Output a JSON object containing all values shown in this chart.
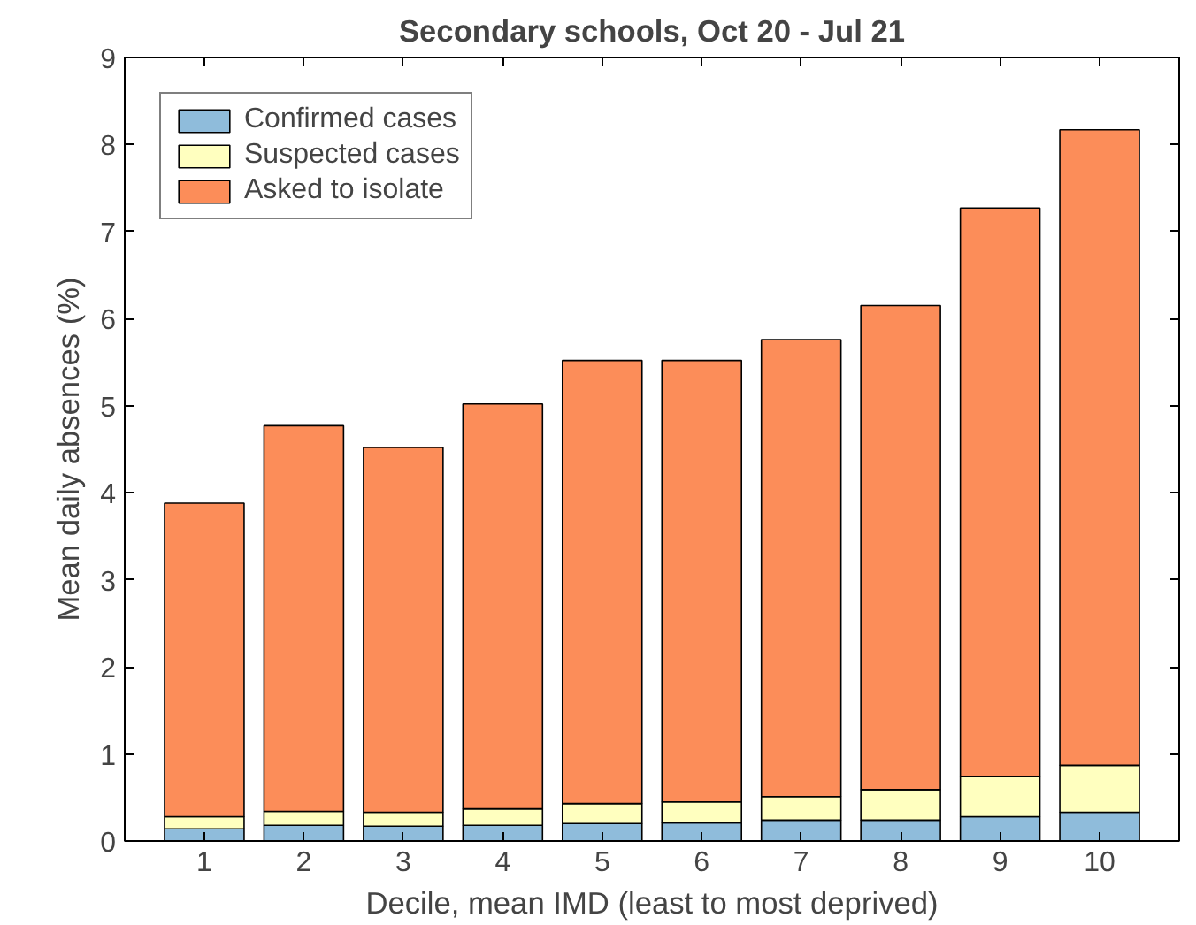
{
  "chart_data": {
    "type": "bar",
    "stacked": true,
    "title": "Secondary schools, Oct 20 - Jul 21",
    "xlabel": "Decile, mean IMD (least to most deprived)",
    "ylabel": "Mean daily absences (%)",
    "categories": [
      "1",
      "2",
      "3",
      "4",
      "5",
      "6",
      "7",
      "8",
      "9",
      "10"
    ],
    "series": [
      {
        "name": "Confirmed cases",
        "color": "#8fbcdb",
        "values": [
          0.14,
          0.18,
          0.17,
          0.18,
          0.2,
          0.21,
          0.24,
          0.24,
          0.28,
          0.33
        ]
      },
      {
        "name": "Suspected cases",
        "color": "#ffffbf",
        "values": [
          0.14,
          0.16,
          0.16,
          0.19,
          0.23,
          0.24,
          0.27,
          0.35,
          0.46,
          0.54
        ]
      },
      {
        "name": "Asked to isolate",
        "color": "#fc8d59",
        "values": [
          3.6,
          4.43,
          4.19,
          4.65,
          5.09,
          5.07,
          5.25,
          5.56,
          6.53,
          7.3
        ]
      }
    ],
    "ylim": [
      0,
      9
    ],
    "yticks": [
      0,
      1,
      2,
      3,
      4,
      5,
      6,
      7,
      8,
      9
    ],
    "grid": false,
    "legend": "top left"
  }
}
